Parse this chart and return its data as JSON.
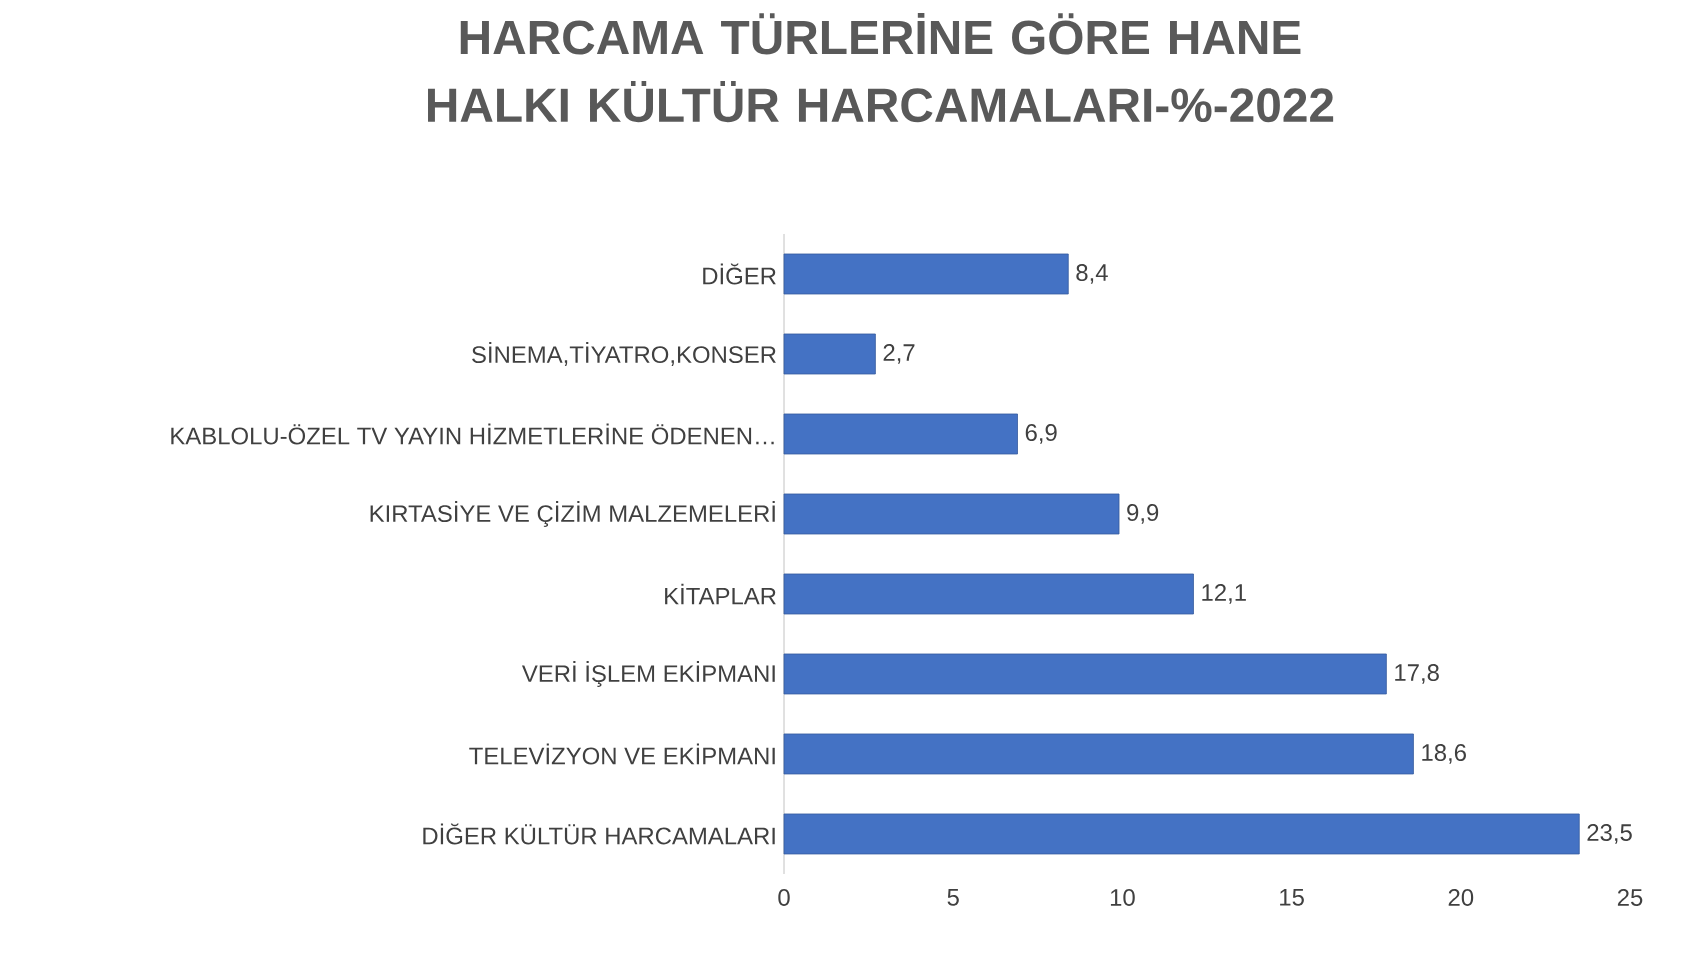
{
  "chart_data": {
    "type": "bar",
    "orientation": "horizontal",
    "title": "HARCAMA TÜRLERİNE GÖRE HANE HALKI KÜLTÜR HARCAMALARI-%-2022",
    "categories": [
      "DİĞER",
      "SİNEMA,TİYATRO,KONSER",
      "KABLOLU-ÖZEL TV YAYIN HİZMETLERİNE ÖDENEN…",
      "KIRTASİYE VE ÇİZİM MALZEMELERİ",
      "KİTAPLAR",
      "VERİ İŞLEM EKİPMANI",
      "TELEVİZYON VE EKİPMANI",
      "DİĞER KÜLTÜR HARCAMALARI"
    ],
    "values": [
      8.4,
      2.7,
      6.9,
      9.9,
      12.1,
      17.8,
      18.6,
      23.5
    ],
    "value_labels": [
      "8,4",
      "2,7",
      "6,9",
      "9,9",
      "12,1",
      "17,8",
      "18,6",
      "23,5"
    ],
    "color": "#4472c4",
    "xlim": [
      0,
      25
    ],
    "xticks": [
      0,
      5,
      10,
      15,
      20,
      25
    ]
  }
}
